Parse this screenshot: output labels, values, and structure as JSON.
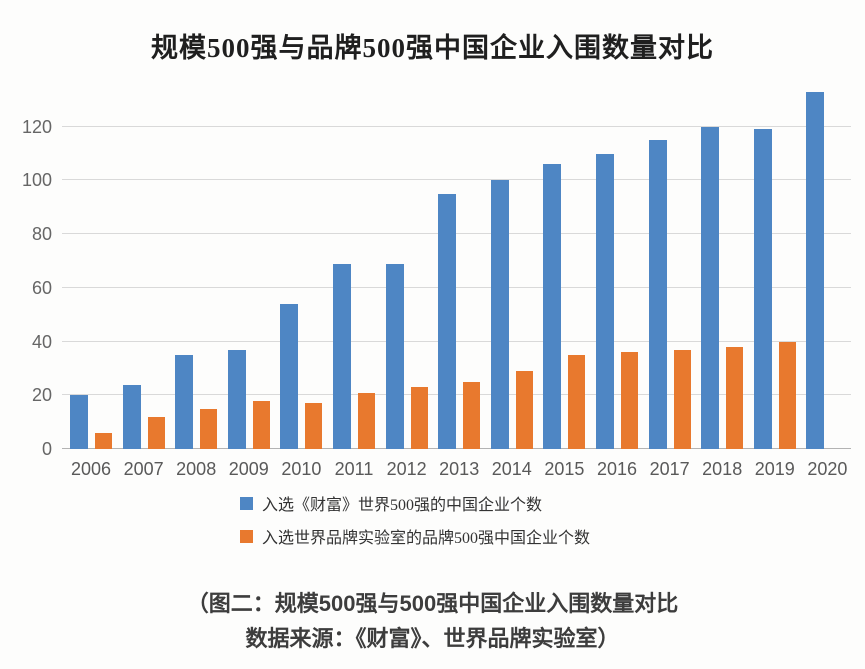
{
  "chart_data": {
    "type": "bar",
    "title": "规模500强与品牌500强中国企业入围数量对比",
    "categories": [
      "2006",
      "2007",
      "2008",
      "2009",
      "2010",
      "2011",
      "2012",
      "2013",
      "2014",
      "2015",
      "2016",
      "2017",
      "2018",
      "2019",
      "2020"
    ],
    "series": [
      {
        "name": "入选《财富》世界500强的中国企业个数",
        "color": "#4e86c4",
        "values": [
          20,
          24,
          35,
          37,
          54,
          69,
          69,
          95,
          100,
          106,
          110,
          115,
          120,
          119,
          133
        ]
      },
      {
        "name": "入选世界品牌实验室的品牌500强中国企业个数",
        "color": "#e8792e",
        "values": [
          6,
          12,
          15,
          18,
          17,
          21,
          23,
          25,
          29,
          35,
          36,
          37,
          38,
          40,
          null
        ]
      }
    ],
    "ylim": [
      0,
      140
    ],
    "ytick_step": 20,
    "ytick_max": 120,
    "grid": "horizontal",
    "legend_position": "bottom-center-left",
    "gridline_color": "#d9d9d9",
    "baseline_color": "#b3b3b3"
  },
  "caption": {
    "line1": "（图二：规模500强与500强中国企业入围数量对比",
    "line2": "数据来源：《财富》、世界品牌实验室）"
  }
}
